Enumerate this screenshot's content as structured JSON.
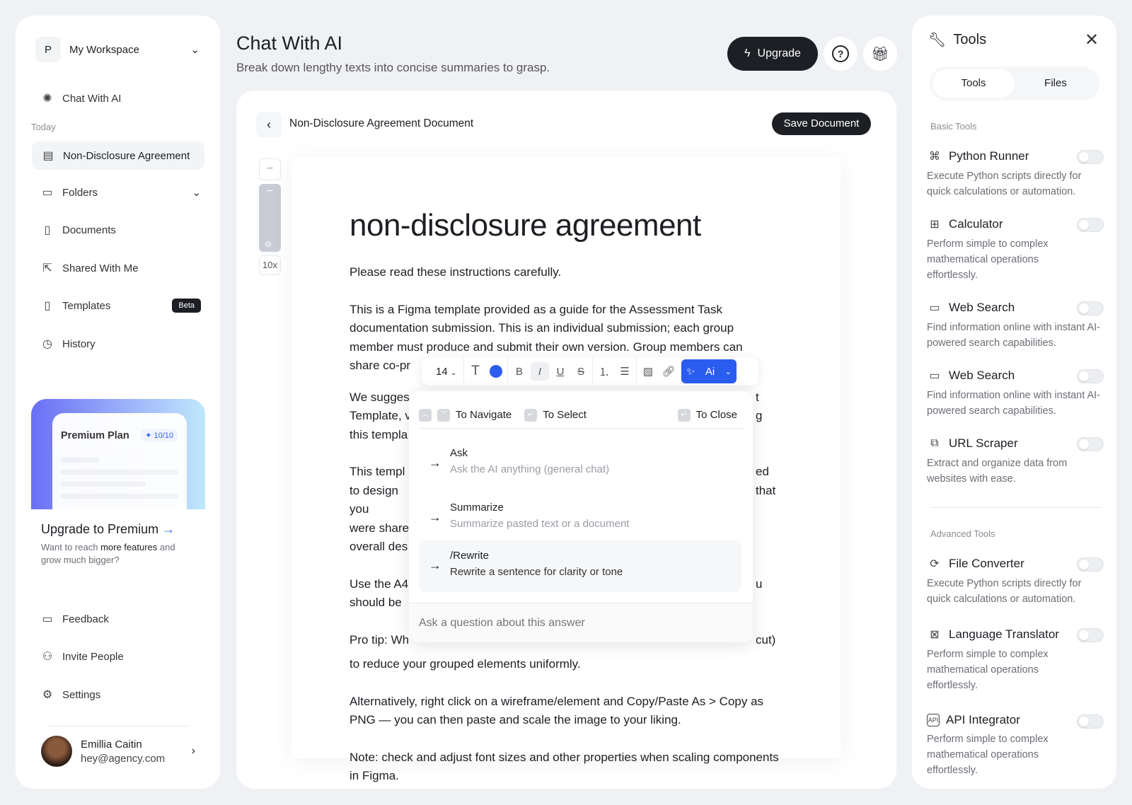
{
  "sidebar": {
    "workspace_initial": "P",
    "workspace": "My Workspace",
    "chat": "Chat With AI",
    "today": "Today",
    "recent": "Non-Disclosure Agreement",
    "items": [
      {
        "label": "Folders"
      },
      {
        "label": "Documents"
      },
      {
        "label": "Shared With Me"
      },
      {
        "label": "Templates",
        "badge": "Beta"
      },
      {
        "label": "History"
      }
    ],
    "promo": {
      "plan": "Premium Plan",
      "count": "10/10",
      "title": "Upgrade to Premium",
      "desc_a": "Want to reach ",
      "desc_b": "more features",
      "desc_c": " and grow much bigger?"
    },
    "bottom": [
      {
        "label": "Feedback"
      },
      {
        "label": "Invite People"
      },
      {
        "label": "Settings"
      }
    ],
    "user": {
      "name": "Emillia Caitin",
      "email": "hey@agency.com"
    }
  },
  "header": {
    "title": "Chat With AI",
    "subtitle": "Break down lengthy texts into concise summaries to grasp.",
    "upgrade": "Upgrade"
  },
  "editor": {
    "doc_title": "Non-Disclosure Agreement Document",
    "save": "Save Document",
    "zoom": "10x",
    "heading": "non-disclosure agreement",
    "paragraphs": [
      "Please read these instructions carefully.",
      "This is a Figma template provided as a guide for the Assessment Task documentation submission. This is an individual submission; each group member must produce and submit their own version. Group members can share co-pr",
      "We sugges                                                                                             t Template, v                                                                                          g this templa",
      "This templ                                                                                             ed to design you                                                                                        that were share overall des",
      "Use the A4                                                                                              u should be",
      "Pro tip: Wh                                                                                             cut) to reduce your grouped elements uniformly.",
      "Alternatively, right click on a wireframe/element and Copy/Paste As > Copy as PNG — you can then paste and scale the image to your liking.",
      "Note: check and adjust font sizes and other properties when scaling components in Figma."
    ],
    "toolbar": {
      "font_size": "14",
      "ai": "Ai",
      "color": "#2b5cf0"
    },
    "popup": {
      "navigate": "To Navigate",
      "select": "To Select",
      "close": "To Close",
      "options": [
        {
          "title": "Ask",
          "desc": "Ask the AI anything (general chat)"
        },
        {
          "title": "Summarize",
          "desc": "Summarize pasted text or a document"
        },
        {
          "title": "/Rewrite",
          "desc": "Rewrite a sentence for clarity or tone"
        }
      ],
      "placeholder": "Ask a question about this answer"
    }
  },
  "tools": {
    "title": "Tools",
    "tabs": [
      "Tools",
      "Files"
    ],
    "basic": "Basic Tools",
    "advanced": "Advanced Tools",
    "basic_items": [
      {
        "name": "Python Runner",
        "desc": "Execute Python scripts directly for quick calculations or automation.",
        "enabled": false
      },
      {
        "name": "Calculator",
        "desc": "Perform simple to complex mathematical operations effortlessly.",
        "enabled": false
      },
      {
        "name": "Web Search",
        "desc": "Find information online with instant AI-powered search capabilities.",
        "enabled": false
      },
      {
        "name": "Web Search",
        "desc": "Find information online with instant AI-powered search capabilities.",
        "enabled": false
      },
      {
        "name": "URL Scraper",
        "desc": "Extract and organize data from websites with ease.",
        "enabled": false
      }
    ],
    "advanced_items": [
      {
        "name": "File Converter",
        "desc": "Execute Python scripts directly for quick calculations or automation.",
        "enabled": false
      },
      {
        "name": "Language Translator",
        "desc": "Perform simple to complex mathematical operations effortlessly.",
        "enabled": false
      },
      {
        "name": "API Integrator",
        "desc": "Perform simple to complex mathematical operations effortlessly.",
        "enabled": false
      }
    ]
  }
}
